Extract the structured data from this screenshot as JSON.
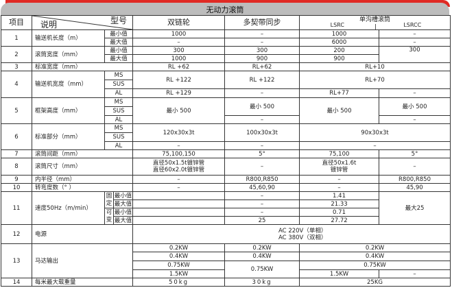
{
  "title": "无动力滚筒",
  "colors": {
    "accent": "#e02a24",
    "title_bar": "#bcbcbc"
  },
  "header": {
    "item": "项目",
    "desc": "说明",
    "model": "型号",
    "cols": [
      "双链轮",
      "多契带同步"
    ],
    "group": "单沟槽滚筒",
    "sub": [
      "LSRC",
      "LSRCC"
    ]
  },
  "lbl": {
    "min": "最小值",
    "max": "最大值",
    "ms": "MS",
    "sus": "SUS",
    "al": "AL",
    "fixed": "固定",
    "variable": "可变",
    "dash": "–"
  },
  "r1": {
    "no": "1",
    "label": "输送机长度（m）",
    "min": [
      "1000",
      "–",
      "1000",
      "–"
    ],
    "max": [
      "–",
      "–",
      "6000",
      "–"
    ]
  },
  "r2": {
    "no": "2",
    "label": "滚筒宽度（mm）",
    "min": [
      "300",
      "300",
      "200",
      "300"
    ],
    "max": [
      "1000",
      "900",
      "900"
    ]
  },
  "r3": {
    "no": "3",
    "label": "标准宽度（mm）",
    "v": [
      "RL +62",
      "RL+62",
      "RL+10"
    ]
  },
  "r4": {
    "no": "4",
    "label": "输送机宽度（mm）",
    "ms": [
      "RL +122",
      "RL +122",
      "RL+70"
    ],
    "al": [
      "RL +129",
      "–",
      "RL+77",
      "–"
    ]
  },
  "r5": {
    "no": "5",
    "label": "框架高度（mm）",
    "v": [
      "最小 500",
      "最小 500",
      "最小 500",
      "最小 500"
    ],
    "al": [
      "–",
      "–"
    ]
  },
  "r6": {
    "no": "6",
    "label": "标准部分（mm）",
    "ms": [
      "120x30x3t",
      "100x30x3t",
      "90x30x3t"
    ],
    "al": [
      "–",
      "–",
      "–"
    ]
  },
  "r7": {
    "no": "7",
    "label": "滚筒间距（mm）",
    "v": [
      "75,100,150",
      "5°",
      "75,100",
      "5°"
    ]
  },
  "r8": {
    "no": "8",
    "label": "滚筒尺寸（mm）",
    "v": [
      [
        "直径50x1.5t镀锌管",
        "直径60x2.0t镀锌管"
      ],
      "–",
      [
        "直径50x1.6t",
        "镀锌管"
      ],
      "–"
    ]
  },
  "r9": {
    "no": "9",
    "label": "内半径（mm）",
    "v": [
      "–",
      "R800,R850",
      "–",
      "R800,R850"
    ]
  },
  "r10": {
    "no": "10",
    "label": "转弯度数（°  ）",
    "v": [
      "–",
      "45,60,90",
      "–",
      "45,90"
    ]
  },
  "r11": {
    "no": "11",
    "label": "速度50Hz（m/min）",
    "f": [
      "–",
      "–",
      "–",
      "25"
    ],
    "g": [
      "1.41",
      "21.33",
      "0.71",
      "27.72"
    ],
    "h": "最大25"
  },
  "r12": {
    "no": "12",
    "label": "电源",
    "v": [
      "AC 220V（单相）",
      "AC 380V（双相）"
    ]
  },
  "r13": {
    "no": "13",
    "label": "马达输出",
    "e": [
      "0.2KW",
      "0.4KW",
      "0.75KW",
      "1.5KW"
    ],
    "f": [
      "0.2KW",
      "0.4KW",
      "0.75KW"
    ],
    "g": [
      "0.2KW",
      "0.4KW",
      "0.75KW",
      "1.5KW",
      "–"
    ]
  },
  "r14": {
    "no": "14",
    "label": "每米最大载重量",
    "v": [
      "50kg",
      "30kg",
      "25KG"
    ]
  }
}
